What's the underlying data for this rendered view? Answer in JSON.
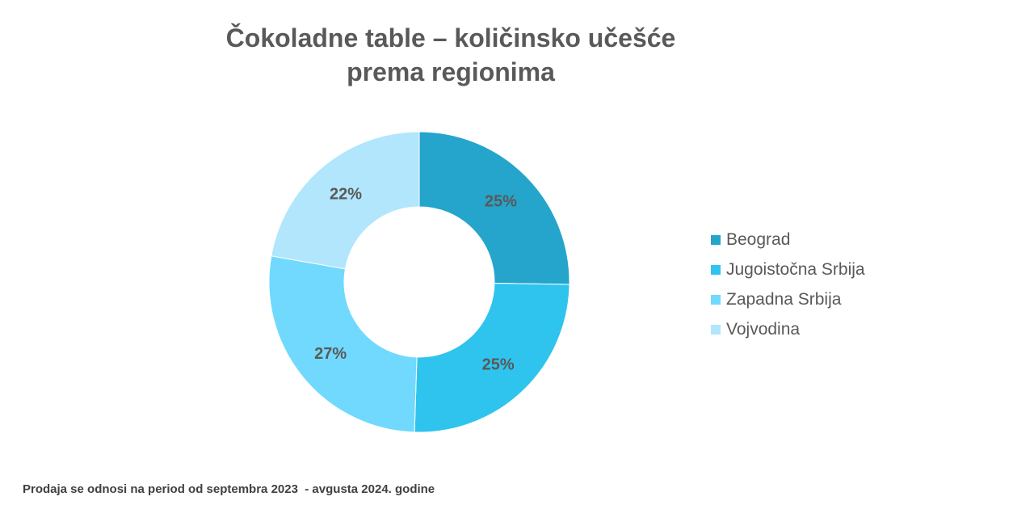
{
  "chart_data": {
    "type": "pie",
    "variant": "donut",
    "title_lines": [
      "Čokoladne table – količinsko učešće",
      "prema regionima"
    ],
    "categories": [
      "Beograd",
      "Jugoistočna Srbija",
      "Zapadna Srbija",
      "Vojvodina"
    ],
    "values": [
      25,
      25,
      27,
      22
    ],
    "data_labels": [
      "25%",
      "25%",
      "27%",
      "22%"
    ],
    "colors": [
      "#25a5cb",
      "#2fc4ee",
      "#71d9fd",
      "#b1e6fc"
    ],
    "legend_position": "right"
  },
  "footnote": "Prodaja se odnosi na period od septembra 2023  - avgusta 2024. godine"
}
